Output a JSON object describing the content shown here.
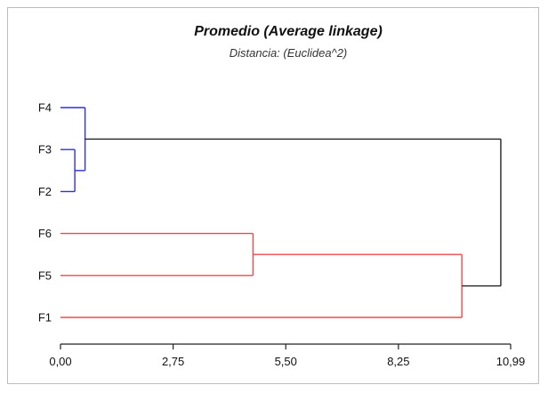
{
  "chart_data": {
    "type": "dendrogram",
    "title": "Promedio (Average linkage)",
    "subtitle": "Distancia: (Euclidea^2)",
    "xlim": [
      0,
      10.99
    ],
    "x_ticks": [
      {
        "value": 0,
        "label": "0,00"
      },
      {
        "value": 2.75,
        "label": "2,75"
      },
      {
        "value": 5.5,
        "label": "5,50"
      },
      {
        "value": 8.25,
        "label": "8,25"
      },
      {
        "value": 10.99,
        "label": "10,99"
      }
    ],
    "leaves": [
      "F4",
      "F3",
      "F2",
      "F6",
      "F5",
      "F1"
    ],
    "merges": [
      {
        "id": "c1",
        "left": "F3",
        "right": "F2",
        "height": 0.35,
        "color": "#2f2fe0"
      },
      {
        "id": "c2",
        "left": "F4",
        "right": "c1",
        "height": 0.6,
        "color": "#2f2fe0"
      },
      {
        "id": "c3",
        "left": "F6",
        "right": "F5",
        "height": 4.7,
        "color": "#f04848"
      },
      {
        "id": "c4",
        "left": "c3",
        "right": "F1",
        "height": 9.8,
        "color": "#f04848"
      },
      {
        "id": "c5",
        "left": "c2",
        "right": "c4",
        "height": 10.75,
        "color": "#222222"
      }
    ],
    "leaf_color_groups": {
      "F4": "#2f2fe0",
      "F3": "#2f2fe0",
      "F2": "#2f2fe0",
      "F6": "#f04848",
      "F5": "#f04848",
      "F1": "#f04848"
    },
    "grid": false,
    "axis_color": "#222222"
  }
}
